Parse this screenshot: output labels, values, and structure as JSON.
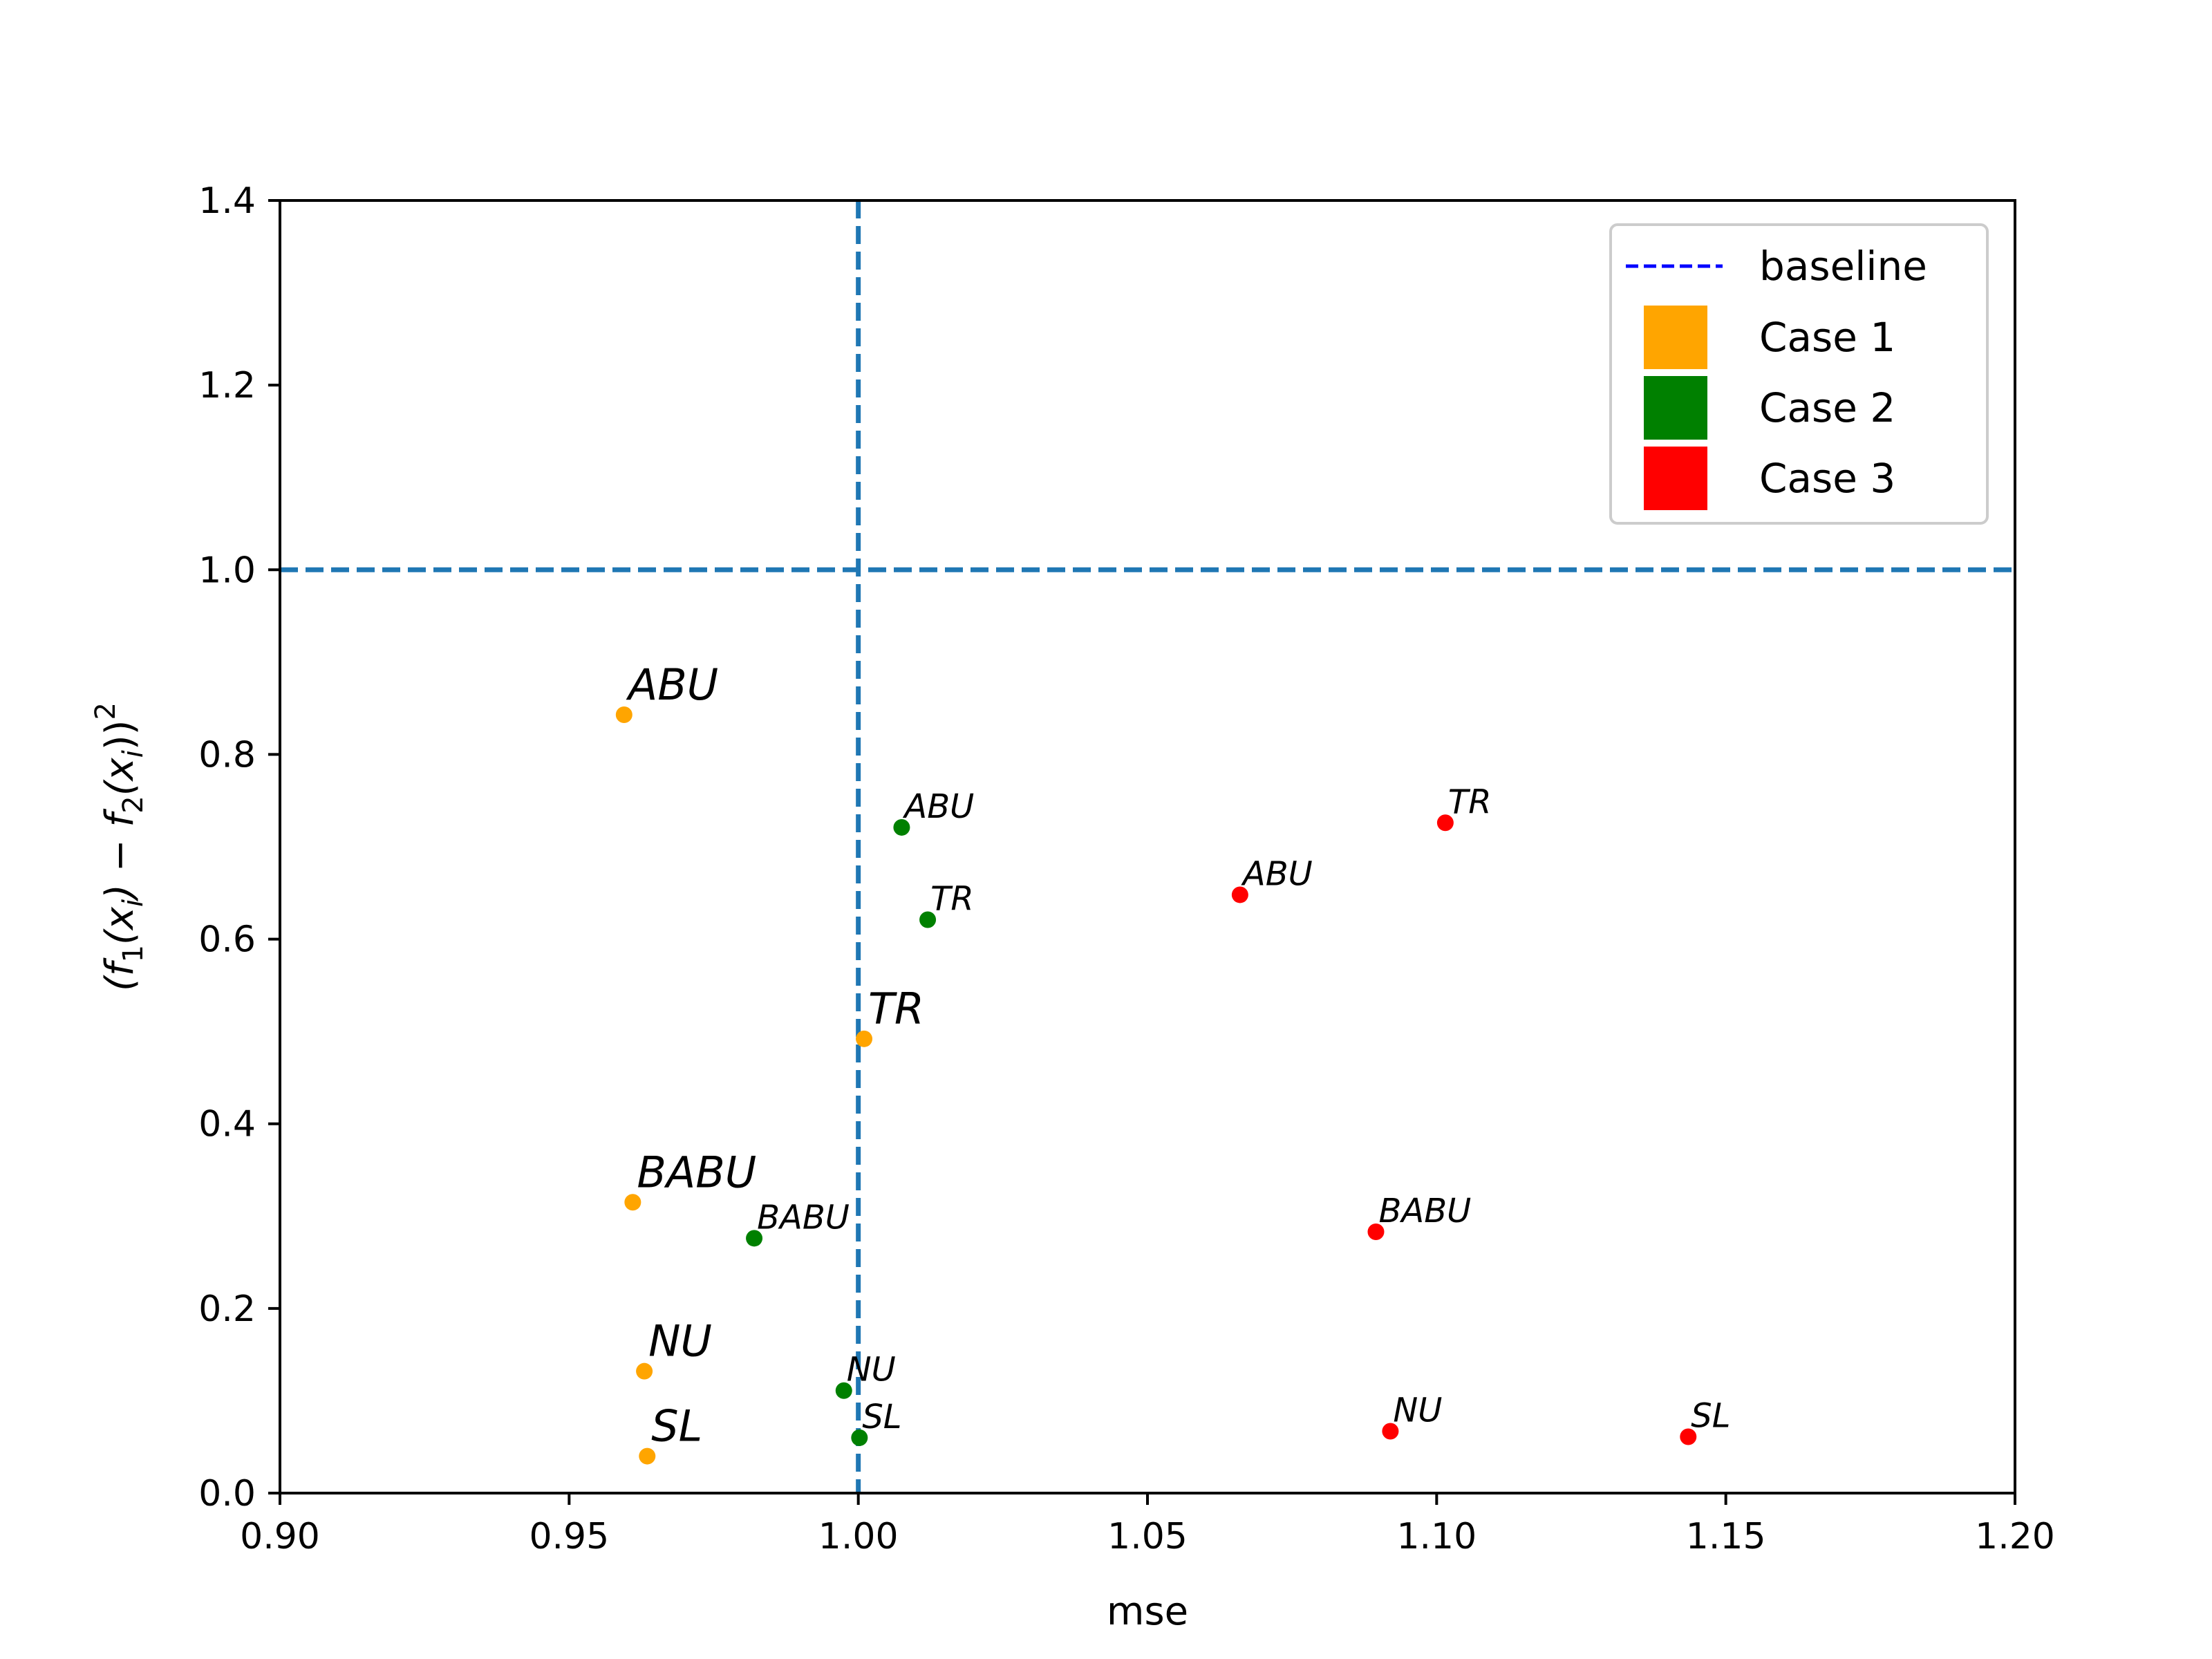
{
  "chart_data": {
    "type": "scatter",
    "xlabel": "mse",
    "ylabel_parts": [
      "(f",
      "1",
      "(x",
      "i",
      ") − f",
      "2",
      "(x",
      "i",
      "))",
      "2"
    ],
    "xlim": [
      0.9,
      1.2
    ],
    "ylim": [
      0.0,
      1.4
    ],
    "x_ticks": [
      "0.90",
      "0.95",
      "1.00",
      "1.05",
      "1.10",
      "1.15",
      "1.20"
    ],
    "x_tick_values": [
      0.9,
      0.95,
      1.0,
      1.05,
      1.1,
      1.15,
      1.2
    ],
    "y_ticks": [
      "0.0",
      "0.2",
      "0.4",
      "0.6",
      "0.8",
      "1.0",
      "1.2",
      "1.4"
    ],
    "y_tick_values": [
      0.0,
      0.2,
      0.4,
      0.6,
      0.8,
      1.0,
      1.2,
      1.4
    ],
    "reference_lines": {
      "vertical_x": 1.0,
      "horizontal_y": 1.0,
      "color": "#1f77b4",
      "style": "dashed"
    },
    "legend": [
      {
        "label": "baseline",
        "kind": "line",
        "color": "#0000ff"
      },
      {
        "label": "Case 1",
        "kind": "patch",
        "color": "#ffa500"
      },
      {
        "label": "Case 2",
        "kind": "patch",
        "color": "#008000"
      },
      {
        "label": "Case 3",
        "kind": "patch",
        "color": "#ff0000"
      }
    ],
    "legend_position": "top-right",
    "series": [
      {
        "name": "Case 1",
        "color": "#ffa500",
        "label_size": "large",
        "points": [
          {
            "label": "ABU",
            "x": 0.9595,
            "y": 0.843
          },
          {
            "label": "TR",
            "x": 1.001,
            "y": 0.492
          },
          {
            "label": "BABU",
            "x": 0.961,
            "y": 0.315
          },
          {
            "label": "NU",
            "x": 0.963,
            "y": 0.132
          },
          {
            "label": "SL",
            "x": 0.9635,
            "y": 0.04
          }
        ]
      },
      {
        "name": "Case 2",
        "color": "#008000",
        "label_size": "small",
        "points": [
          {
            "label": "ABU",
            "x": 1.0075,
            "y": 0.721
          },
          {
            "label": "TR",
            "x": 1.012,
            "y": 0.621
          },
          {
            "label": "BABU",
            "x": 0.982,
            "y": 0.276
          },
          {
            "label": "NU",
            "x": 0.9975,
            "y": 0.111
          },
          {
            "label": "SL",
            "x": 1.0002,
            "y": 0.06
          }
        ]
      },
      {
        "name": "Case 3",
        "color": "#ff0000",
        "label_size": "small",
        "points": [
          {
            "label": "ABU",
            "x": 1.066,
            "y": 0.648
          },
          {
            "label": "TR",
            "x": 1.1015,
            "y": 0.726
          },
          {
            "label": "BABU",
            "x": 1.0895,
            "y": 0.283
          },
          {
            "label": "NU",
            "x": 1.092,
            "y": 0.067
          },
          {
            "label": "SL",
            "x": 1.1435,
            "y": 0.061
          }
        ]
      }
    ]
  }
}
